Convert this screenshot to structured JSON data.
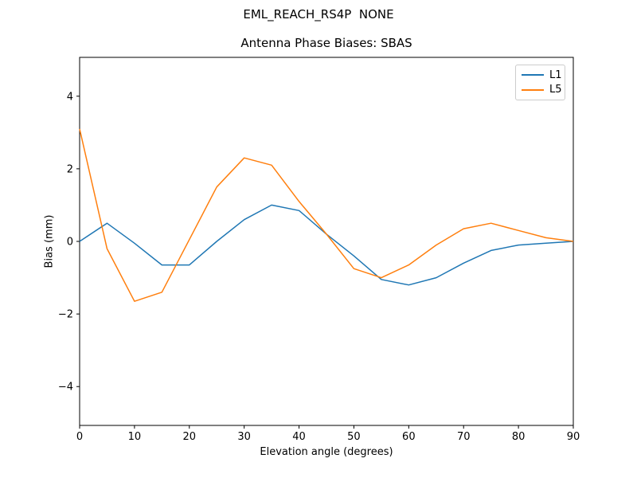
{
  "figure": {
    "suptitle": "EML_REACH_RS4P  NONE",
    "background": "#ffffff",
    "text_color": "#000000"
  },
  "chart_data": {
    "type": "line",
    "title": "Antenna Phase Biases: SBAS",
    "xlabel": "Elevation angle (degrees)",
    "ylabel": "Bias (mm)",
    "xlim": [
      0,
      90
    ],
    "ylim": [
      -5.07,
      5.07
    ],
    "grid": false,
    "x": [
      0,
      5,
      10,
      15,
      20,
      25,
      30,
      35,
      40,
      45,
      50,
      55,
      60,
      65,
      70,
      75,
      80,
      85,
      90
    ],
    "series": [
      {
        "name": "L1",
        "color": "#1f77b4",
        "values": [
          0.0,
          0.5,
          -0.05,
          -0.65,
          -0.65,
          0.0,
          0.6,
          1.0,
          0.85,
          0.2,
          -0.4,
          -1.05,
          -1.2,
          -1.0,
          -0.6,
          -0.25,
          -0.1,
          -0.05,
          0.0
        ]
      },
      {
        "name": "L5",
        "color": "#ff7f0e",
        "values": [
          3.1,
          -0.2,
          -1.65,
          -1.4,
          0.05,
          1.5,
          2.3,
          2.1,
          1.1,
          0.2,
          -0.75,
          -1.0,
          -0.65,
          -0.1,
          0.35,
          0.5,
          0.3,
          0.1,
          0.0
        ]
      }
    ],
    "xticks": {
      "values": [
        0,
        10,
        20,
        30,
        40,
        50,
        60,
        70,
        80,
        90
      ],
      "labels": [
        "0",
        "10",
        "20",
        "30",
        "40",
        "50",
        "60",
        "70",
        "80",
        "90"
      ]
    },
    "yticks": {
      "values": [
        -4,
        -2,
        0,
        2,
        4
      ],
      "labels": [
        "−4",
        "−2",
        "0",
        "2",
        "4"
      ]
    },
    "legend": {
      "position": "upper right",
      "entries": [
        "L1",
        "L5"
      ]
    },
    "axes_color": "#000000"
  }
}
